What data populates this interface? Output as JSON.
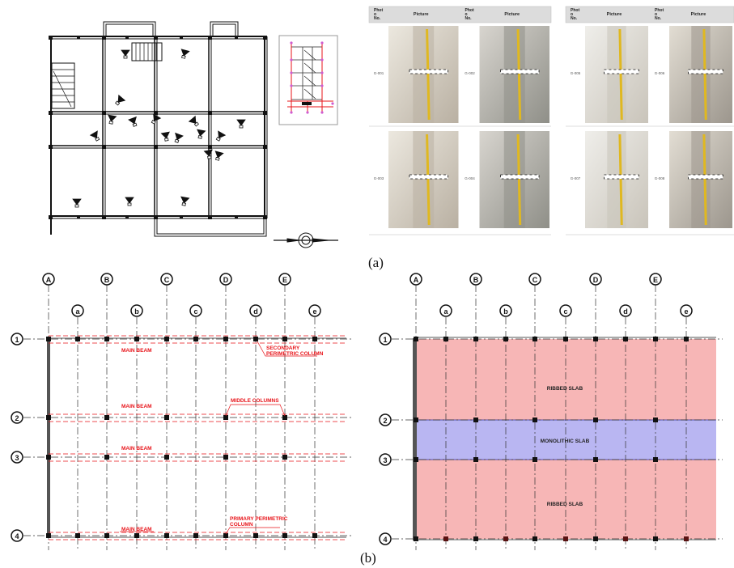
{
  "captions": {
    "a": "(a)",
    "b": "(b)"
  },
  "photo_table": {
    "header": {
      "photo_no": "Phot\no\nNo.",
      "picture": "Picture"
    },
    "photos": [
      {
        "id": "G-001"
      },
      {
        "id": "G-002"
      },
      {
        "id": "G-005"
      },
      {
        "id": "G-006"
      },
      {
        "id": "G-003"
      },
      {
        "id": "G-004"
      },
      {
        "id": "G-007"
      },
      {
        "id": "G-008"
      }
    ]
  },
  "plan_b_left": {
    "grid_major": [
      "A",
      "B",
      "C",
      "D",
      "E"
    ],
    "grid_minor": [
      "a",
      "b",
      "c",
      "d",
      "e"
    ],
    "rows": [
      "1",
      "2",
      "3",
      "4"
    ],
    "labels": {
      "main_beam_1": "MAIN BEAM",
      "main_beam_2": "MAIN BEAM",
      "main_beam_3": "MAIN BEAM",
      "main_beam_4": "MAIN BEAM",
      "secondary_column": "SECONDARY\nPERIMETRIC COLUMN",
      "middle_columns": "MIDDLE COLUMNS",
      "primary_column": "PRIMARY PERIMETRIC\nCOLUMN"
    }
  },
  "plan_b_right": {
    "grid_major": [
      "A",
      "B",
      "C",
      "D",
      "E"
    ],
    "grid_minor": [
      "a",
      "b",
      "c",
      "d",
      "e"
    ],
    "rows": [
      "1",
      "2",
      "3",
      "4"
    ],
    "labels": {
      "ribbed_top": "RIBBED SLAB",
      "monolithic": "MONOLITHIC SLAB",
      "ribbed_bottom": "RIBBED SLAB"
    },
    "colors": {
      "ribbed": "#f7b6b6",
      "monolithic": "#b9b6f2"
    }
  },
  "colors": {
    "annotation_red": "#e8141a",
    "dimension_red": "#e8141a"
  }
}
